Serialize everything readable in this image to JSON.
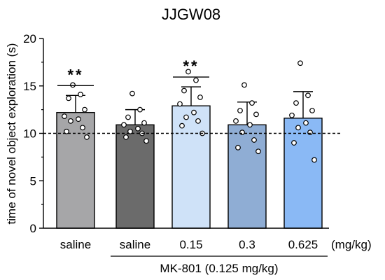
{
  "chart_data": {
    "type": "bar",
    "title": "JJGW08",
    "ylabel": "time of novel object exploration (s)",
    "xlabel": "",
    "ylim": [
      0,
      20
    ],
    "yticks": [
      0,
      5,
      10,
      15,
      20
    ],
    "categories": [
      "saline",
      "saline",
      "0.15",
      "0.3",
      "0.625"
    ],
    "unit_label": "(mg/kg)",
    "group_label": "MK-801 (0.125 mg/kg)",
    "reference_line": 10,
    "bars": [
      {
        "category": "saline",
        "mean": 12.2,
        "sd": 1.8,
        "color": "#a6a6a8",
        "significance": "**",
        "points": [
          15.1,
          14.1,
          13.7,
          12.5,
          11.8,
          11.5,
          11.3,
          10.6,
          10.2,
          9.6
        ]
      },
      {
        "category": "saline",
        "mean": 10.9,
        "sd": 1.6,
        "color": "#6b6b6b",
        "significance": "",
        "points": [
          14.2,
          12.5,
          11.7,
          11.1,
          10.9,
          10.5,
          10.2,
          10.0,
          9.6,
          9.2
        ]
      },
      {
        "category": "0.15",
        "mean": 12.9,
        "sd": 2.0,
        "color": "#cfe2f8",
        "significance": "**",
        "points": [
          16.5,
          15.6,
          14.5,
          13.8,
          13.1,
          12.2,
          11.7,
          11.3,
          10.8,
          10.0
        ]
      },
      {
        "category": "0.3",
        "mean": 10.9,
        "sd": 2.4,
        "color": "#8fadd4",
        "significance": "",
        "points": [
          15.1,
          13.2,
          12.4,
          12.0,
          11.3,
          10.9,
          10.1,
          9.3,
          8.5,
          8.1
        ]
      },
      {
        "category": "0.625",
        "mean": 11.6,
        "sd": 2.8,
        "color": "#8ab9f5",
        "significance": "",
        "points": [
          17.4,
          14.0,
          13.2,
          12.4,
          11.9,
          11.1,
          10.6,
          10.1,
          9.0,
          7.2
        ]
      }
    ]
  }
}
